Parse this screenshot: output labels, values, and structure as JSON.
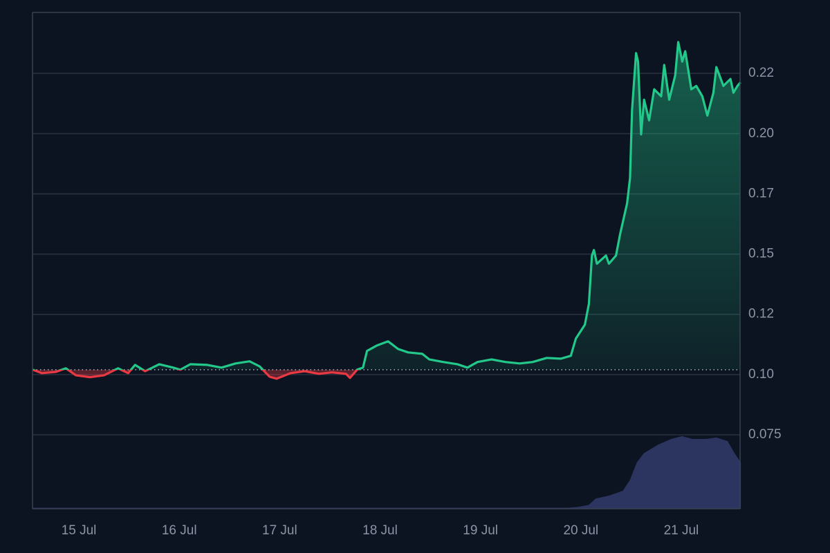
{
  "chart_data": {
    "type": "line",
    "xlim": [
      14.538,
      21.586
    ],
    "ylim": [
      0.0443,
      0.2503
    ],
    "xticks": [
      {
        "value": 15,
        "label": "15 Jul"
      },
      {
        "value": 16,
        "label": "16 Jul"
      },
      {
        "value": 17,
        "label": "17 Jul"
      },
      {
        "value": 18,
        "label": "18 Jul"
      },
      {
        "value": 19,
        "label": "19 Jul"
      },
      {
        "value": 20,
        "label": "20 Jul"
      },
      {
        "value": 21,
        "label": "21 Jul"
      }
    ],
    "yticks": [
      {
        "value": 0.225,
        "label": "0.22"
      },
      {
        "value": 0.2,
        "label": "0.20"
      },
      {
        "value": 0.175,
        "label": "0.17"
      },
      {
        "value": 0.15,
        "label": "0.15"
      },
      {
        "value": 0.125,
        "label": "0.12"
      },
      {
        "value": 0.1,
        "label": "0.10"
      },
      0.075
    ],
    "grid": true,
    "baseline": 0.102,
    "up_color": "#22c98a",
    "down_color": "#ea3943",
    "series": [
      {
        "x": [
          14.54,
          14.63,
          14.77,
          14.87,
          14.97,
          15.11,
          15.25,
          15.39,
          15.49,
          15.56,
          15.66,
          15.8,
          15.94,
          16.01,
          16.11,
          16.28,
          16.42,
          16.56,
          16.7,
          16.8,
          16.9,
          16.97,
          17.11,
          17.25,
          17.39,
          17.52,
          17.66,
          17.7,
          17.77,
          17.83,
          17.87,
          17.97,
          18.08,
          18.18,
          18.28,
          18.42,
          18.49,
          18.63,
          18.77,
          18.87,
          18.97,
          19.11,
          19.25,
          19.39,
          19.52,
          19.66,
          19.8,
          19.9,
          19.95,
          20.04,
          20.08,
          20.11,
          20.13,
          20.16,
          20.25,
          20.28,
          20.35,
          20.39,
          20.46,
          20.49,
          20.51,
          20.55,
          20.57,
          20.6,
          20.63,
          20.68,
          20.73,
          20.8,
          20.83,
          20.88,
          20.94,
          20.97,
          21.01,
          21.04,
          21.1,
          21.15,
          21.21,
          21.26,
          21.32,
          21.35,
          21.42,
          21.49,
          21.52,
          21.56,
          21.59
        ],
        "values": [
          0.102,
          0.1006,
          0.1011,
          0.1026,
          0.0997,
          0.0989,
          0.0997,
          0.1026,
          0.1006,
          0.104,
          0.1014,
          0.1043,
          0.1029,
          0.102,
          0.1043,
          0.104,
          0.1029,
          0.1046,
          0.1055,
          0.1034,
          0.0991,
          0.0983,
          0.1006,
          0.1014,
          0.1003,
          0.1009,
          0.1003,
          0.0986,
          0.102,
          0.1029,
          0.1098,
          0.1121,
          0.1138,
          0.1106,
          0.1092,
          0.1086,
          0.1063,
          0.1052,
          0.1043,
          0.1029,
          0.1052,
          0.1063,
          0.1052,
          0.1046,
          0.1052,
          0.1069,
          0.1066,
          0.1078,
          0.1149,
          0.1207,
          0.1293,
          0.1494,
          0.1517,
          0.146,
          0.1494,
          0.146,
          0.1494,
          0.1581,
          0.171,
          0.1816,
          0.2098,
          0.2334,
          0.2299,
          0.1997,
          0.2141,
          0.2055,
          0.2184,
          0.2155,
          0.2285,
          0.2141,
          0.2242,
          0.238,
          0.2299,
          0.2342,
          0.2184,
          0.2198,
          0.2155,
          0.2075,
          0.217,
          0.2276,
          0.2198,
          0.2227,
          0.217,
          0.2198,
          0.2213
        ]
      },
      {
        "axis": "y2",
        "color": "#2b3560",
        "x": [
          14.54,
          19.87,
          19.97,
          20.08,
          20.15,
          20.28,
          20.42,
          20.49,
          20.56,
          20.63,
          20.77,
          20.9,
          21.01,
          21.11,
          21.25,
          21.35,
          21.46,
          21.52,
          21.59
        ],
        "values": [
          1,
          1,
          2,
          5,
          14,
          18,
          25,
          40,
          65,
          78,
          90,
          98,
          102,
          98,
          98,
          100,
          95,
          80,
          65
        ]
      }
    ],
    "y2lim": [
      0,
      700
    ]
  }
}
